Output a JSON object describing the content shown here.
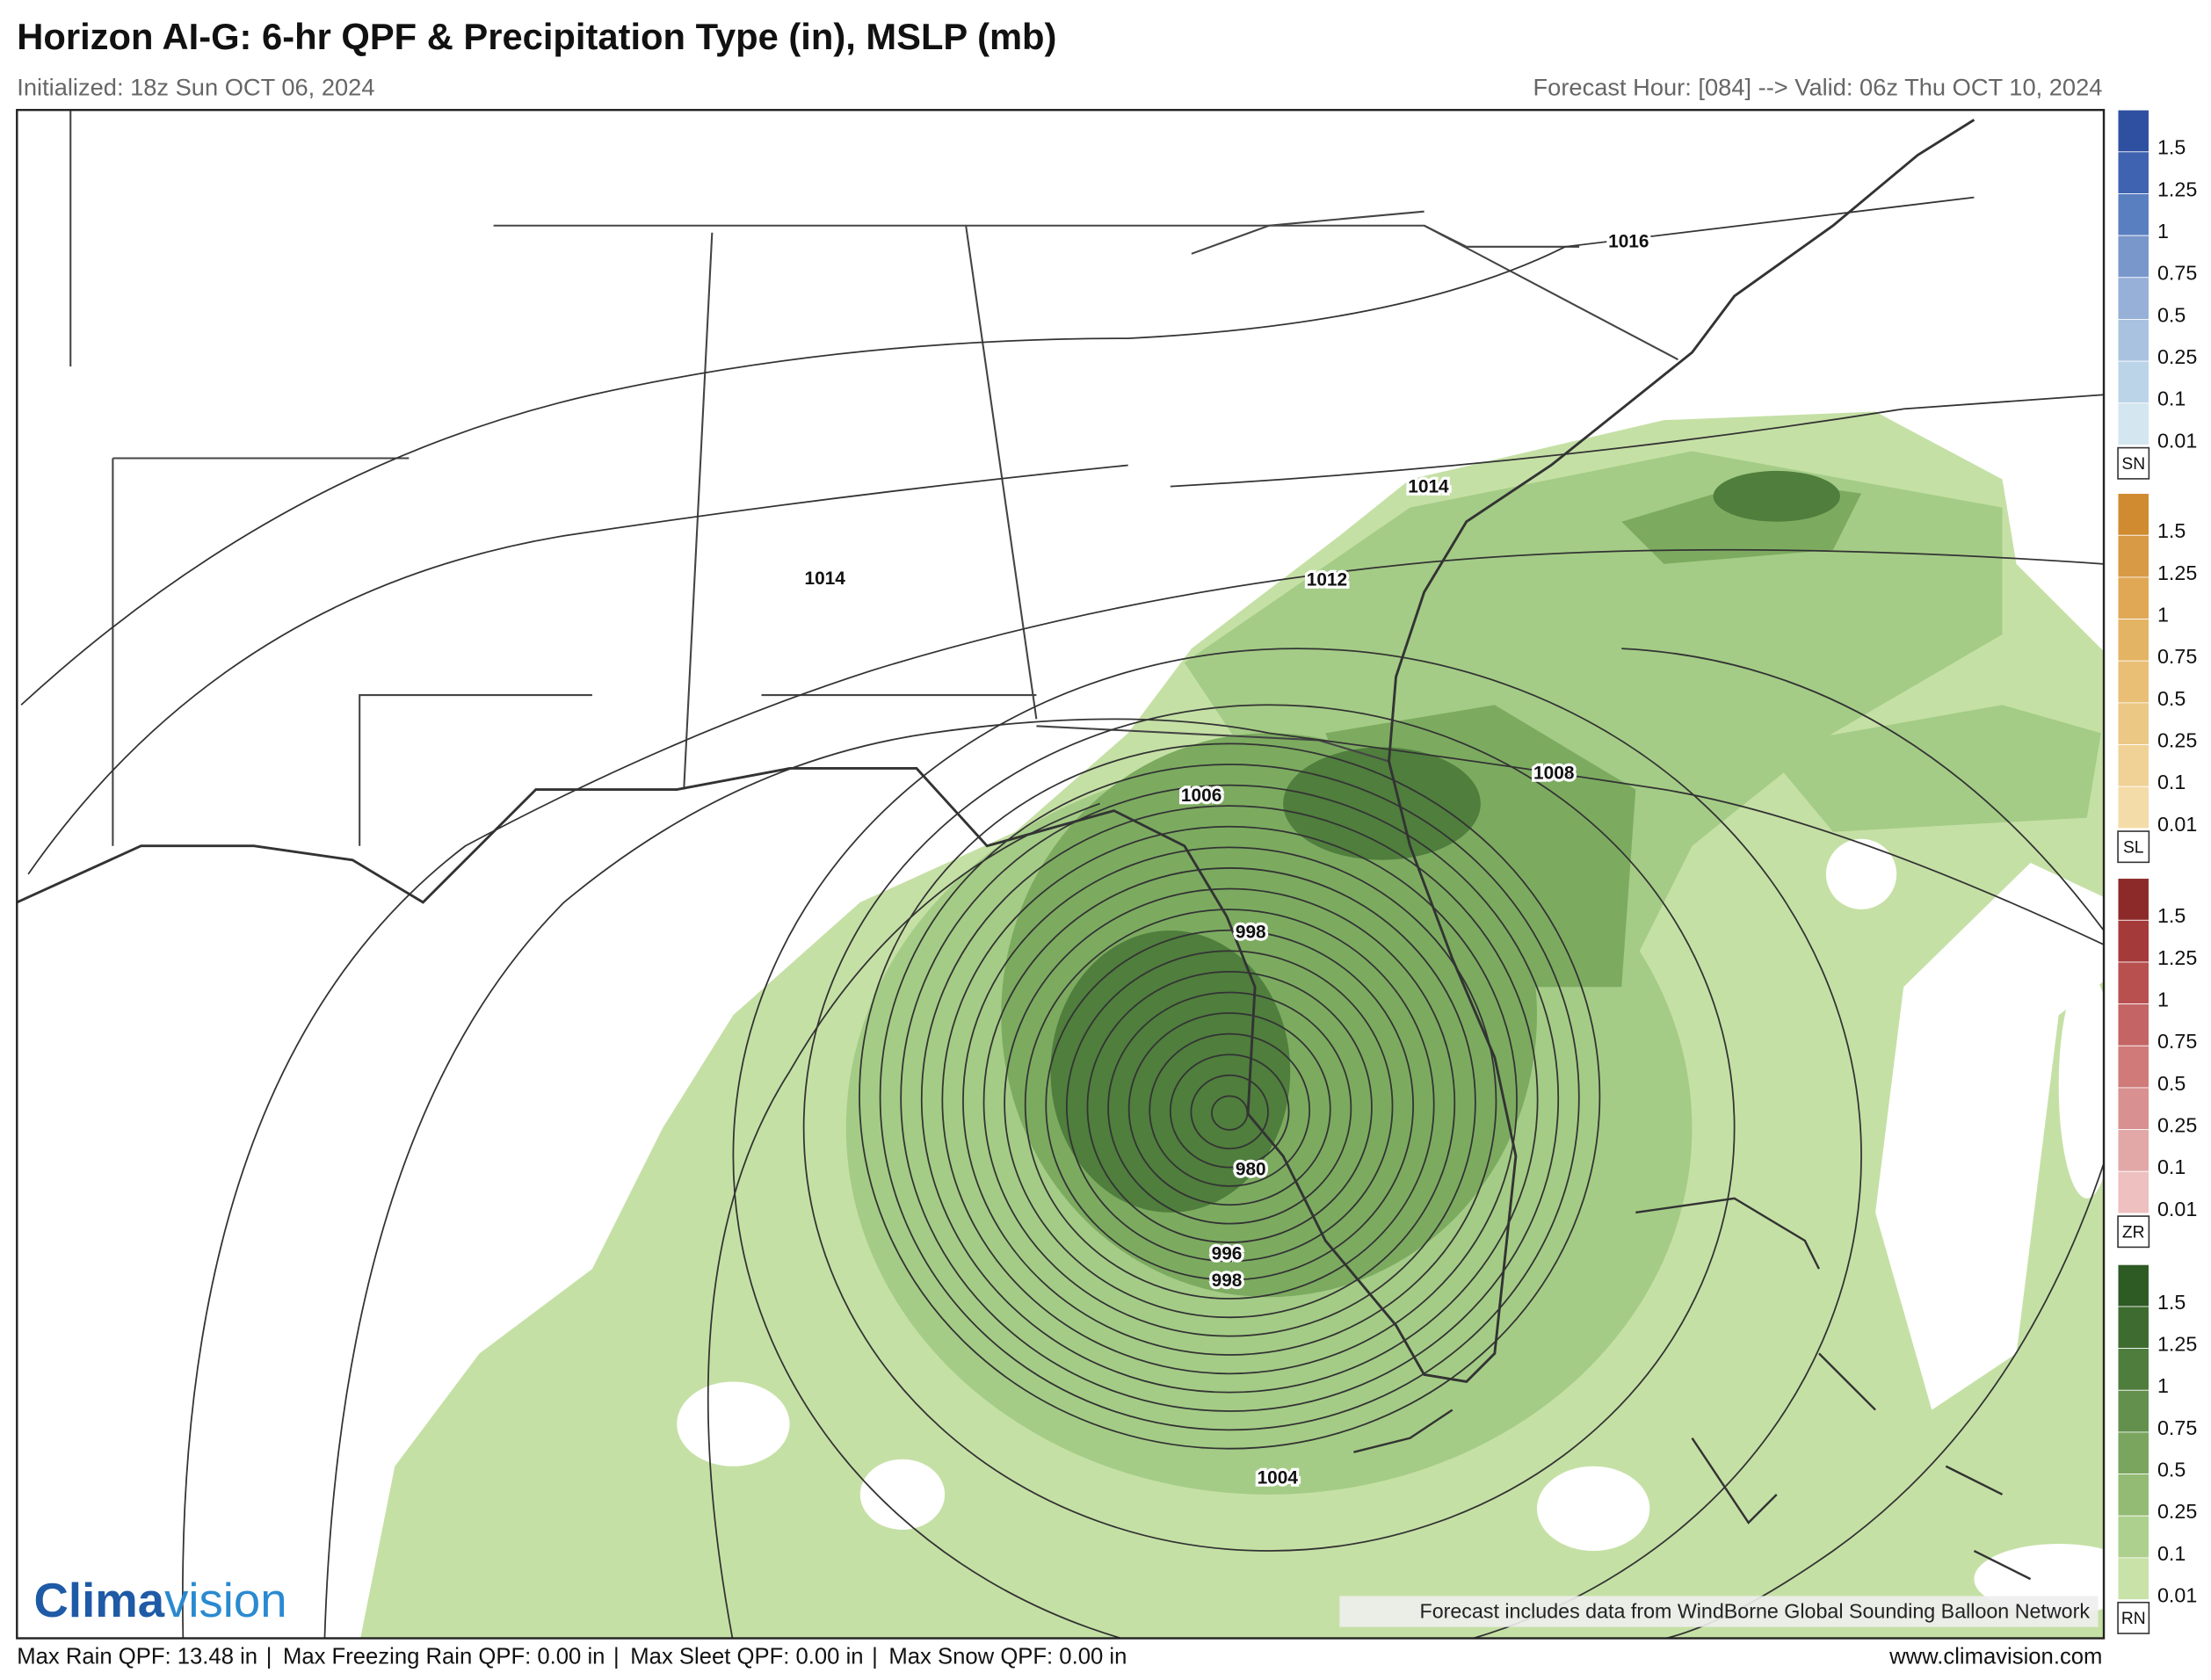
{
  "header": {
    "title": "Horizon AI-G: 6-hr QPF & Precipitation Type (in), MSLP (mb)",
    "initialized": "Initialized: 18z Sun OCT 06, 2024",
    "valid": "Forecast Hour: [084] --> Valid: 06z Thu OCT 10, 2024"
  },
  "legend": {
    "levels": [
      "1.5",
      "1.25",
      "1",
      "0.75",
      "0.5",
      "0.25",
      "0.1",
      "0.01"
    ],
    "groups": [
      {
        "label": "SN",
        "colors": [
          "#2f4fa0",
          "#3f63b0",
          "#5a7fc0",
          "#7a97cc",
          "#96b0d8",
          "#a9c2e0",
          "#bcd4e8",
          "#d4e6f0"
        ]
      },
      {
        "label": "SL",
        "colors": [
          "#d08a30",
          "#d89a45",
          "#e0a855",
          "#e4b465",
          "#e8bf75",
          "#ecc885",
          "#f0d296",
          "#f4dca8"
        ]
      },
      {
        "label": "ZR",
        "colors": [
          "#8c2a2a",
          "#a53a3a",
          "#b85050",
          "#c46464",
          "#d07a7a",
          "#d89090",
          "#e2a8a8",
          "#eec0c0"
        ]
      },
      {
        "label": "RN",
        "colors": [
          "#2e5a24",
          "#3e6c30",
          "#4f7d3e",
          "#64904e",
          "#7aa55e",
          "#93bb73",
          "#aed08e",
          "#c8e2a8"
        ]
      }
    ]
  },
  "isobar_labels": [
    1016,
    1014,
    1014,
    1012,
    1008,
    1006,
    998,
    980,
    996,
    998,
    1004
  ],
  "logo": {
    "parts": [
      "Clima",
      "vision"
    ]
  },
  "attribution": "Forecast includes data from WindBorne Global Sounding Balloon Network",
  "footer": {
    "items": [
      "Max Rain QPF: 13.48 in",
      "Max Freezing Rain QPF: 0.00 in",
      "Max Sleet QPF: 0.00 in",
      "Max Snow QPF: 0.00 in"
    ],
    "separator": "|",
    "url": "www.climavision.com"
  }
}
